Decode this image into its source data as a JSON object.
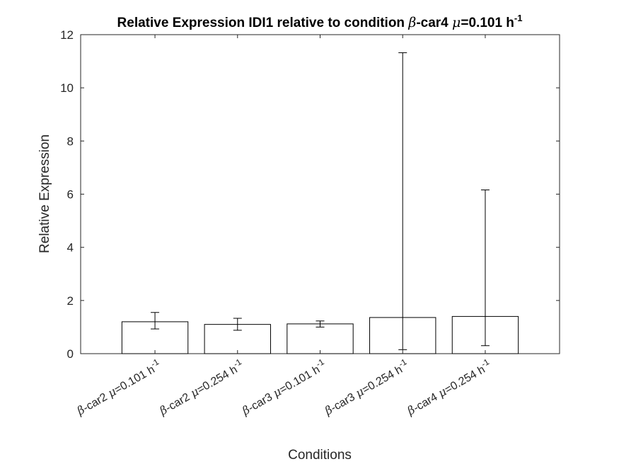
{
  "chart_data": {
    "type": "bar",
    "title": {
      "prefix": "Relative Expression IDI1 relative to condition ",
      "beta": "β",
      "gene": "-car4 ",
      "mu": "μ",
      "value": "=0.101 h",
      "exponent": "-1"
    },
    "xlabel": "Conditions",
    "ylabel": "Relative Expression",
    "ylim": [
      0,
      12
    ],
    "yticks": [
      0,
      2,
      4,
      6,
      8,
      10,
      12
    ],
    "grid": false,
    "bar_color": "#ffffff",
    "edge_color": "#000000",
    "categories": [
      {
        "beta": "β",
        "name": "-car2 ",
        "mu": "μ",
        "rate": "=0.101 h",
        "exp": "-1"
      },
      {
        "beta": "β",
        "name": "-car2 ",
        "mu": "μ",
        "rate": "=0.254 h",
        "exp": "-1"
      },
      {
        "beta": "β",
        "name": "-car3 ",
        "mu": "μ",
        "rate": "=0.101 h",
        "exp": "-1"
      },
      {
        "beta": "β",
        "name": "-car3 ",
        "mu": "μ",
        "rate": "=0.254 h",
        "exp": "-1"
      },
      {
        "beta": "β",
        "name": "-car4 ",
        "mu": "μ",
        "rate": "=0.254 h",
        "exp": "-1"
      }
    ],
    "values": [
      1.2,
      1.1,
      1.12,
      1.36,
      1.4
    ],
    "error_low": [
      0.93,
      0.88,
      1.0,
      0.15,
      0.3
    ],
    "error_high": [
      1.55,
      1.33,
      1.23,
      11.32,
      6.16
    ]
  }
}
